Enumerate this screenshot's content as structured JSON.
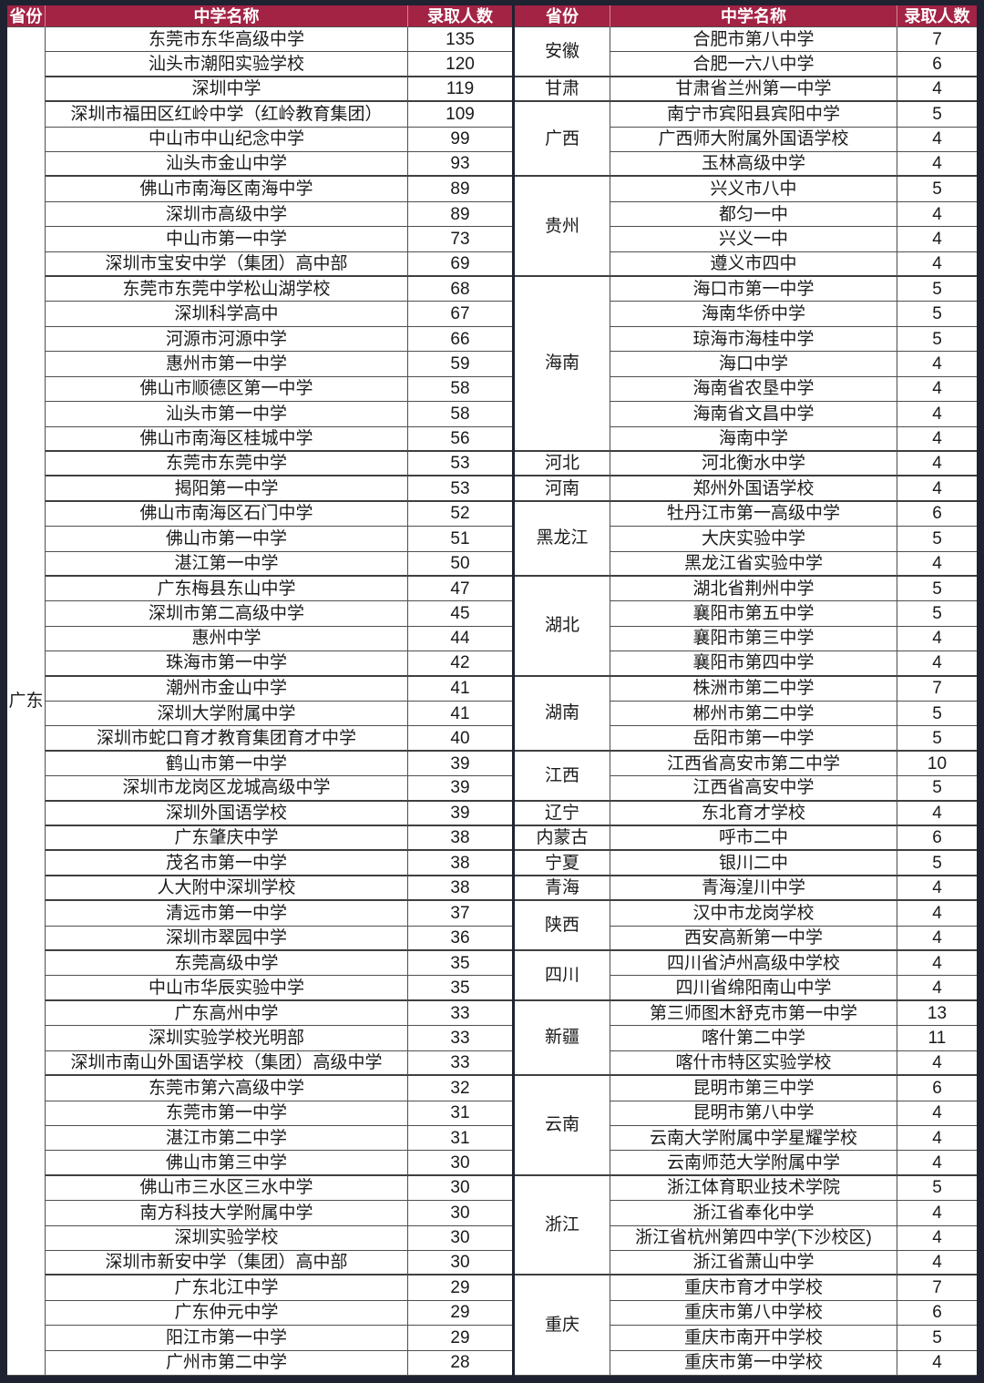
{
  "chart_data": {
    "type": "table",
    "columns": [
      "省份",
      "中学名称",
      "录取人数"
    ],
    "left_panel": {
      "province": "广东",
      "rows": [
        [
          "东莞市东华高级中学",
          135
        ],
        [
          "汕头市潮阳实验学校",
          120
        ],
        [
          "深圳中学",
          119
        ],
        [
          "深圳市福田区红岭中学（红岭教育集团）",
          109
        ],
        [
          "中山市中山纪念中学",
          99
        ],
        [
          "汕头市金山中学",
          93
        ],
        [
          "佛山市南海区南海中学",
          89
        ],
        [
          "深圳市高级中学",
          89
        ],
        [
          "中山市第一中学",
          73
        ],
        [
          "深圳市宝安中学（集团）高中部",
          69
        ],
        [
          "东莞市东莞中学松山湖学校",
          68
        ],
        [
          "深圳科学高中",
          67
        ],
        [
          "河源市河源中学",
          66
        ],
        [
          "惠州市第一中学",
          59
        ],
        [
          "佛山市顺德区第一中学",
          58
        ],
        [
          "汕头市第一中学",
          58
        ],
        [
          "佛山市南海区桂城中学",
          56
        ],
        [
          "东莞市东莞中学",
          53
        ],
        [
          "揭阳第一中学",
          53
        ],
        [
          "佛山市南海区石门中学",
          52
        ],
        [
          "佛山市第一中学",
          51
        ],
        [
          "湛江第一中学",
          50
        ],
        [
          "广东梅县东山中学",
          47
        ],
        [
          "深圳市第二高级中学",
          45
        ],
        [
          "惠州中学",
          44
        ],
        [
          "珠海市第一中学",
          42
        ],
        [
          "潮州市金山中学",
          41
        ],
        [
          "深圳大学附属中学",
          41
        ],
        [
          "深圳市蛇口育才教育集团育才中学",
          40
        ],
        [
          "鹤山市第一中学",
          39
        ],
        [
          "深圳市龙岗区龙城高级中学",
          39
        ],
        [
          "深圳外国语学校",
          39
        ],
        [
          "广东肇庆中学",
          38
        ],
        [
          "茂名市第一中学",
          38
        ],
        [
          "人大附中深圳学校",
          38
        ],
        [
          "清远市第一中学",
          37
        ],
        [
          "深圳市翠园中学",
          36
        ],
        [
          "东莞高级中学",
          35
        ],
        [
          "中山市华辰实验中学",
          35
        ],
        [
          "广东高州中学",
          33
        ],
        [
          "深圳实验学校光明部",
          33
        ],
        [
          "深圳市南山外国语学校（集团）高级中学",
          33
        ],
        [
          "东莞市第六高级中学",
          32
        ],
        [
          "东莞市第一中学",
          31
        ],
        [
          "湛江市第二中学",
          31
        ],
        [
          "佛山市第三中学",
          30
        ],
        [
          "佛山市三水区三水中学",
          30
        ],
        [
          "南方科技大学附属中学",
          30
        ],
        [
          "深圳实验学校",
          30
        ],
        [
          "深圳市新安中学（集团）高中部",
          30
        ],
        [
          "广东北江中学",
          29
        ],
        [
          "广东仲元中学",
          29
        ],
        [
          "阳江市第一中学",
          29
        ],
        [
          "广州市第二中学",
          28
        ]
      ]
    },
    "right_panel": {
      "groups": [
        {
          "province": "安徽",
          "rows": [
            [
              "合肥市第八中学",
              7
            ],
            [
              "合肥一六八中学",
              6
            ]
          ]
        },
        {
          "province": "甘肃",
          "rows": [
            [
              "甘肃省兰州第一中学",
              4
            ]
          ]
        },
        {
          "province": "广西",
          "rows": [
            [
              "南宁市宾阳县宾阳中学",
              5
            ],
            [
              "广西师大附属外国语学校",
              4
            ],
            [
              "玉林高级中学",
              4
            ]
          ]
        },
        {
          "province": "贵州",
          "rows": [
            [
              "兴义市八中",
              5
            ],
            [
              "都匀一中",
              4
            ],
            [
              "兴义一中",
              4
            ],
            [
              "遵义市四中",
              4
            ]
          ]
        },
        {
          "province": "海南",
          "rows": [
            [
              "海口市第一中学",
              5
            ],
            [
              "海南华侨中学",
              5
            ],
            [
              "琼海市海桂中学",
              5
            ],
            [
              "海口中学",
              4
            ],
            [
              "海南省农垦中学",
              4
            ],
            [
              "海南省文昌中学",
              4
            ],
            [
              "海南中学",
              4
            ]
          ]
        },
        {
          "province": "河北",
          "rows": [
            [
              "河北衡水中学",
              4
            ]
          ]
        },
        {
          "province": "河南",
          "rows": [
            [
              "郑州外国语学校",
              4
            ]
          ]
        },
        {
          "province": "黑龙江",
          "rows": [
            [
              "牡丹江市第一高级中学",
              6
            ],
            [
              "大庆实验中学",
              5
            ],
            [
              "黑龙江省实验中学",
              4
            ]
          ]
        },
        {
          "province": "湖北",
          "rows": [
            [
              "湖北省荆州中学",
              5
            ],
            [
              "襄阳市第五中学",
              5
            ],
            [
              "襄阳市第三中学",
              4
            ],
            [
              "襄阳市第四中学",
              4
            ]
          ]
        },
        {
          "province": "湖南",
          "rows": [
            [
              "株洲市第二中学",
              7
            ],
            [
              "郴州市第二中学",
              5
            ],
            [
              "岳阳市第一中学",
              5
            ]
          ]
        },
        {
          "province": "江西",
          "rows": [
            [
              "江西省高安市第二中学",
              10
            ],
            [
              "江西省高安中学",
              5
            ]
          ]
        },
        {
          "province": "辽宁",
          "rows": [
            [
              "东北育才学校",
              4
            ]
          ]
        },
        {
          "province": "内蒙古",
          "rows": [
            [
              "呼市二中",
              6
            ]
          ]
        },
        {
          "province": "宁夏",
          "rows": [
            [
              "银川二中",
              5
            ]
          ]
        },
        {
          "province": "青海",
          "rows": [
            [
              "青海湟川中学",
              4
            ]
          ]
        },
        {
          "province": "陕西",
          "rows": [
            [
              "汉中市龙岗学校",
              4
            ],
            [
              "西安高新第一中学",
              4
            ]
          ]
        },
        {
          "province": "四川",
          "rows": [
            [
              "四川省泸州高级中学校",
              4
            ],
            [
              "四川省绵阳南山中学",
              4
            ]
          ]
        },
        {
          "province": "新疆",
          "rows": [
            [
              "第三师图木舒克市第一中学",
              13
            ],
            [
              "喀什第二中学",
              11
            ],
            [
              "喀什市特区实验学校",
              4
            ]
          ]
        },
        {
          "province": "云南",
          "rows": [
            [
              "昆明市第三中学",
              6
            ],
            [
              "昆明市第八中学",
              4
            ],
            [
              "云南大学附属中学星耀学校",
              4
            ],
            [
              "云南师范大学附属中学",
              4
            ]
          ]
        },
        {
          "province": "浙江",
          "rows": [
            [
              "浙江体育职业技术学院",
              5
            ],
            [
              "浙江省奉化中学",
              4
            ],
            [
              "浙江省杭州第四中学(下沙校区)",
              4
            ],
            [
              "浙江省萧山中学",
              4
            ]
          ]
        },
        {
          "province": "重庆",
          "rows": [
            [
              "重庆市育才中学校",
              7
            ],
            [
              "重庆市第八中学校",
              6
            ],
            [
              "重庆市南开中学校",
              5
            ],
            [
              "重庆市第一中学校",
              4
            ]
          ]
        }
      ]
    }
  },
  "colors": {
    "header_bg": "#A32345",
    "header_text": "#FFFFFF",
    "frame": "#1F2230",
    "grid": "#4F4F4F",
    "group_line": "#3F3F3F",
    "body_text": "#1A1A1A"
  }
}
